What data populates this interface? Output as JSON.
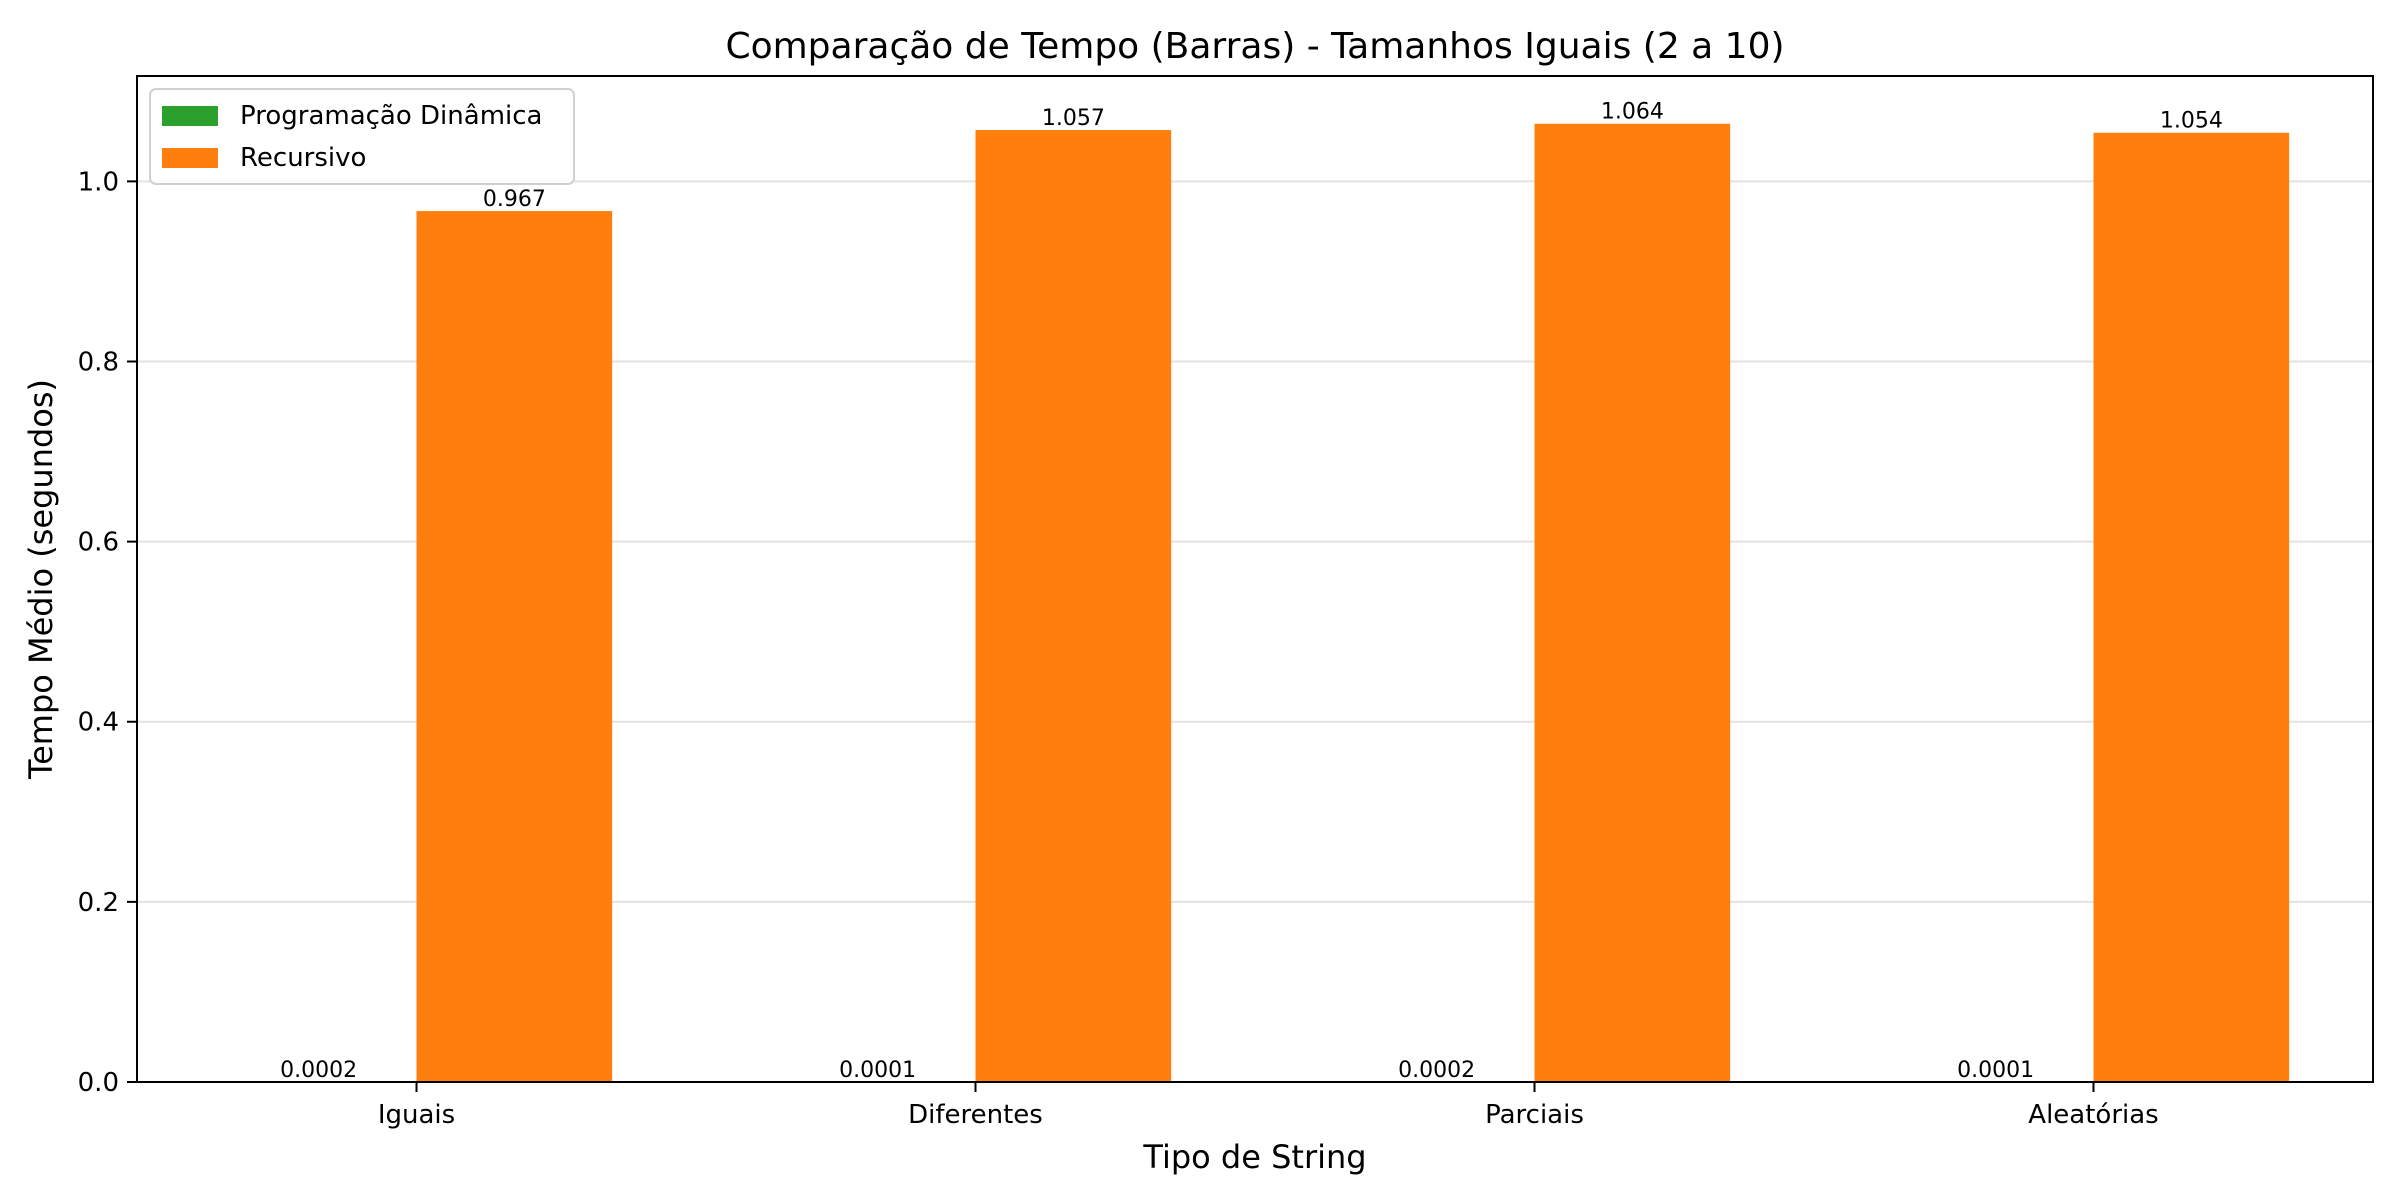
{
  "chart_data": {
    "type": "bar",
    "title": "Comparação de Tempo (Barras) - Tamanhos Iguais (2 a 10)",
    "xlabel": "Tipo de String",
    "ylabel": "Tempo Médio (segundos)",
    "categories": [
      "Iguais",
      "Diferentes",
      "Parciais",
      "Aleatórias"
    ],
    "series": [
      {
        "name": "Programação Dinâmica",
        "color": "#2ca02c",
        "values": [
          0.0002,
          0.0001,
          0.0002,
          0.0001
        ],
        "labels": [
          "0.0002",
          "0.0001",
          "0.0002",
          "0.0001"
        ]
      },
      {
        "name": "Recursivo",
        "color": "#ff7f0e",
        "values": [
          0.967,
          1.057,
          1.064,
          1.054
        ],
        "labels": [
          "0.967",
          "1.057",
          "1.064",
          "1.054"
        ]
      }
    ],
    "ylim": [
      0,
      1.117
    ],
    "yticks": [
      0.0,
      0.2,
      0.4,
      0.6,
      0.8,
      1.0
    ],
    "ytick_labels": [
      "0.0",
      "0.2",
      "0.4",
      "0.6",
      "0.8",
      "1.0"
    ],
    "grid": "horizontal",
    "legend_position": "upper-left"
  }
}
